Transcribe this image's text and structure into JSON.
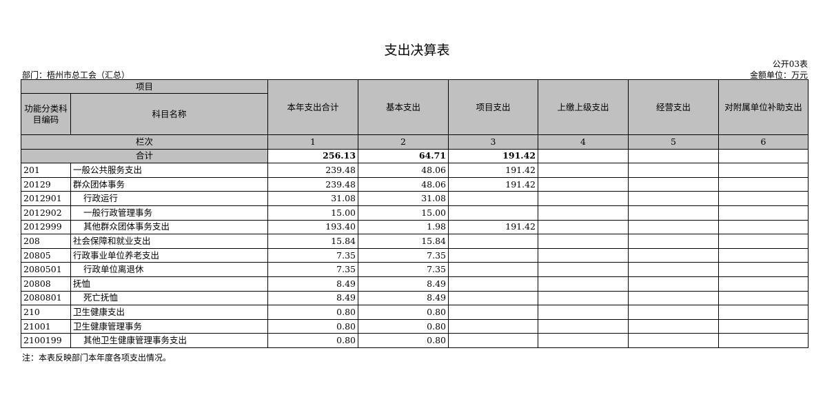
{
  "title": "支出决算表",
  "form_no": "公开03表",
  "department": "部门：梧州市总工会（汇总）",
  "unit": "金额单位：万元",
  "header": {
    "item": "项目",
    "code": "功能分类科目编码",
    "name": "科目名称",
    "columns": [
      "本年支出合计",
      "基本支出",
      "项目支出",
      "上缴上级支出",
      "经营支出",
      "对附属单位补助支出"
    ],
    "column_row_label": "栏次",
    "column_numbers": [
      "1",
      "2",
      "3",
      "4",
      "5",
      "6"
    ]
  },
  "total": {
    "label": "合计",
    "total": "256.13",
    "basic": "64.71",
    "project": "191.42"
  },
  "rows": [
    {
      "code": "201",
      "name": "一般公共服务支出",
      "total": "239.48",
      "basic": "48.06",
      "project": "191.42"
    },
    {
      "code": "20129",
      "name": "群众团体事务",
      "total": "239.48",
      "basic": "48.06",
      "project": "191.42"
    },
    {
      "code": "2012901",
      "name": "行政运行",
      "total": "31.08",
      "basic": "31.08"
    },
    {
      "code": "2012902",
      "name": "一般行政管理事务",
      "total": "15.00",
      "basic": "15.00"
    },
    {
      "code": "2012999",
      "name": "其他群众团体事务支出",
      "total": "193.40",
      "basic": "1.98",
      "project": "191.42"
    },
    {
      "code": "208",
      "name": "社会保障和就业支出",
      "total": "15.84",
      "basic": "15.84"
    },
    {
      "code": "20805",
      "name": "行政事业单位养老支出",
      "total": "7.35",
      "basic": "7.35"
    },
    {
      "code": "2080501",
      "name": "行政单位离退休",
      "total": "7.35",
      "basic": "7.35"
    },
    {
      "code": "20808",
      "name": "抚恤",
      "total": "8.49",
      "basic": "8.49"
    },
    {
      "code": "2080801",
      "name": "死亡抚恤",
      "total": "8.49",
      "basic": "8.49"
    },
    {
      "code": "210",
      "name": "卫生健康支出",
      "total": "0.80",
      "basic": "0.80"
    },
    {
      "code": "21001",
      "name": "卫生健康管理事务",
      "total": "0.80",
      "basic": "0.80"
    },
    {
      "code": "2100199",
      "name": "其他卫生健康管理事务支出",
      "total": "0.80",
      "basic": "0.80"
    }
  ],
  "note": "注：本表反映部门本年度各项支出情况。"
}
